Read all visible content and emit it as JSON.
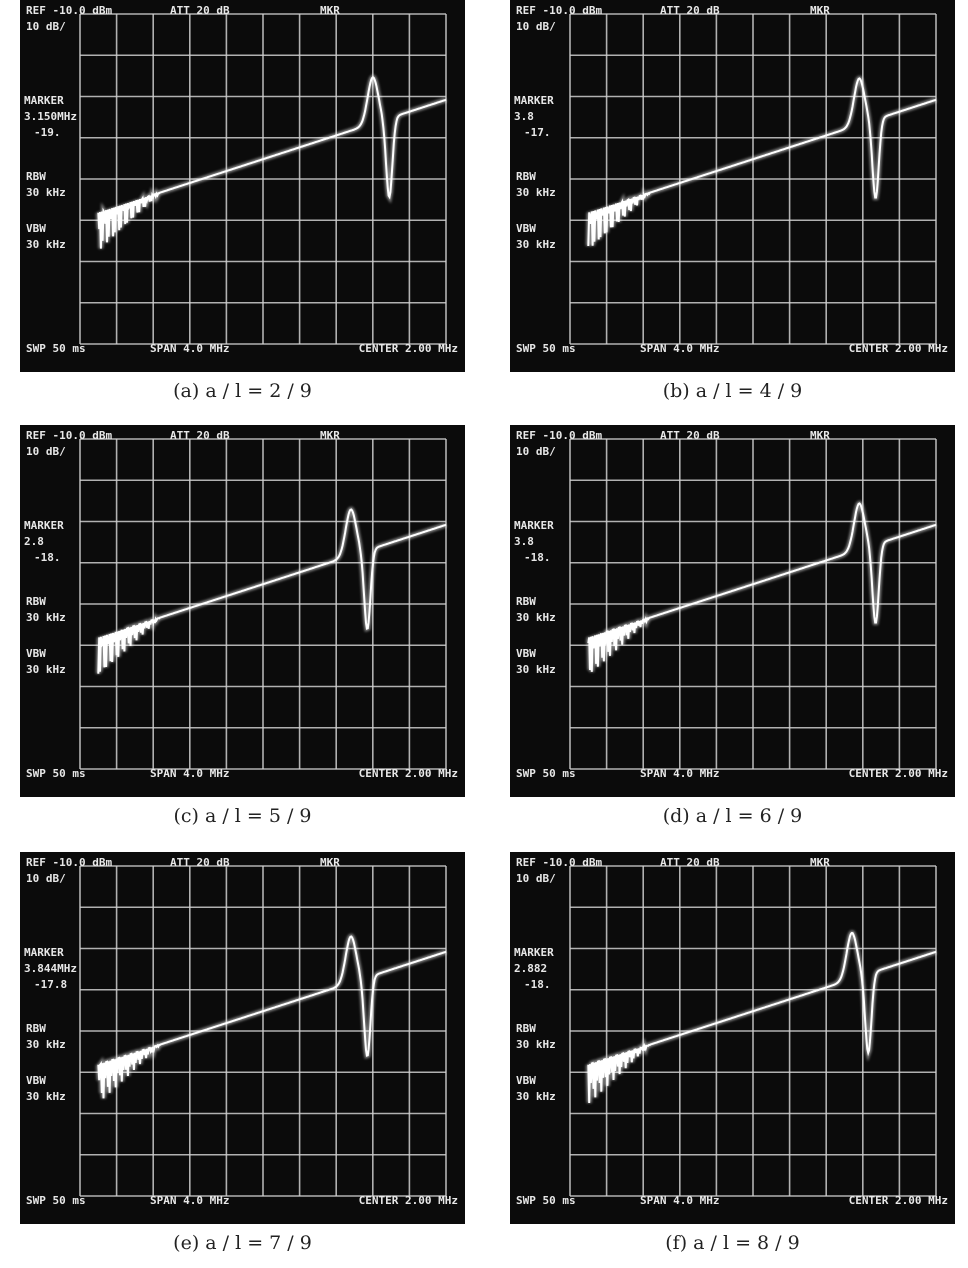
{
  "screen": {
    "ref": "REF -10.0 dBm",
    "scale": "10 dB/",
    "att": "ATT 20 dB",
    "mkr": "MKR",
    "marker": "MARKER",
    "rbw": "RBW",
    "rbw_value": "30 kHz",
    "vbw": "VBW",
    "vbw_value": "30 kHz",
    "sweep": "SWP 50 ms",
    "span": "SPAN 4.0 MHz",
    "center": "CENTER 2.00 MHz"
  },
  "panels": [
    {
      "caption": "(a)  a / l = 2 / 9",
      "marker_freq": "3.150MHz",
      "marker_level": "-19."
    },
    {
      "caption": "(b)  a / l = 4 / 9",
      "marker_freq": "3.8",
      "marker_level": "-17."
    },
    {
      "caption": "(c)  a / l = 5 / 9",
      "marker_freq": "2.8",
      "marker_level": "-18."
    },
    {
      "caption": "(d)  a / l = 6 / 9",
      "marker_freq": "3.8",
      "marker_level": "-18."
    },
    {
      "caption": "(e)  a / l = 7 / 9",
      "marker_freq": "3.844MHz",
      "marker_level": "-17.8"
    },
    {
      "caption": "(f)  a / l = 8 / 9",
      "marker_freq": "2.882",
      "marker_level": "-18."
    }
  ]
}
